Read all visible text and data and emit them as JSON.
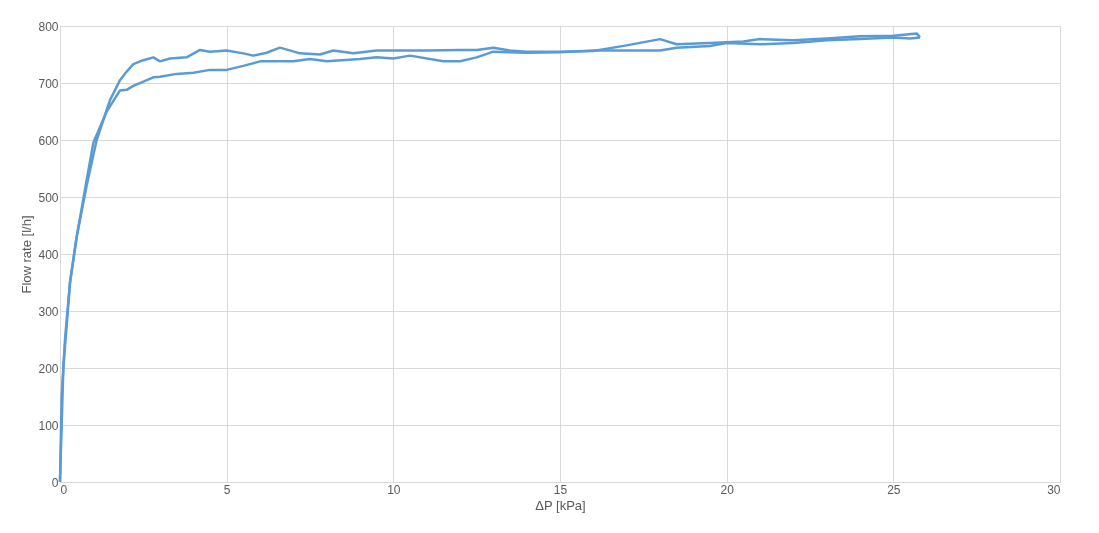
{
  "chart_data": {
    "type": "line",
    "xlabel": "ΔP [kPa]",
    "ylabel": "Flow rate [l/h]",
    "xlim": [
      0,
      30
    ],
    "xticks": [
      0,
      5,
      10,
      15,
      20,
      25,
      30
    ],
    "ylim": [
      0,
      800
    ],
    "yticks": [
      0,
      100,
      200,
      300,
      400,
      500,
      600,
      700,
      800
    ],
    "grid": true,
    "legend": false,
    "marker": "none",
    "line_style": "solid",
    "series": [
      {
        "color": "#5b9bd5",
        "x": [
          0,
          0.05,
          0.15,
          0.3,
          0.5,
          0.8,
          1.1,
          1.5,
          1.8,
          2.0,
          2.2,
          2.5,
          2.8,
          3.0,
          3.3,
          3.8,
          4.2,
          4.5,
          5,
          5.5,
          5.8,
          6.2,
          6.6,
          7.2,
          7.8,
          8.2,
          8.8,
          9.5,
          10,
          11,
          12,
          12.5,
          13,
          13.5,
          14,
          15,
          16,
          17,
          18,
          18.5,
          19.5,
          20.5,
          21,
          22,
          23,
          24,
          25,
          25.7,
          25.8
        ],
        "values": [
          0,
          150,
          250,
          350,
          430,
          520,
          600,
          670,
          705,
          720,
          733,
          740,
          745,
          738,
          743,
          745,
          758,
          755,
          757,
          752,
          748,
          753,
          762,
          752,
          750,
          757,
          752,
          757,
          757,
          757,
          758,
          758,
          762,
          757,
          755,
          755,
          756,
          766,
          777,
          768,
          770,
          773,
          777,
          775,
          778,
          782,
          783,
          787,
          780
        ]
      },
      {
        "color": "#5b9bd5",
        "x": [
          25.8,
          25.5,
          25,
          24,
          23,
          22,
          21,
          20,
          19.5,
          18.5,
          18,
          17,
          16,
          15,
          14,
          13,
          12.5,
          12,
          11.5,
          10.5,
          10,
          9.5,
          9,
          8,
          7.5,
          7,
          6,
          5.5,
          5,
          4.5,
          4,
          3.5,
          3,
          2.8,
          2.2,
          2.0,
          1.8,
          1.4,
          1.0,
          0.8,
          0.5,
          0.3,
          0.1,
          0
        ],
        "values": [
          780,
          778,
          780,
          777,
          775,
          770,
          768,
          770,
          765,
          762,
          757,
          757,
          757,
          754,
          753,
          755,
          745,
          738,
          738,
          748,
          743,
          745,
          742,
          738,
          742,
          738,
          738,
          730,
          723,
          723,
          718,
          716,
          711,
          710,
          695,
          688,
          687,
          650,
          595,
          530,
          430,
          350,
          200,
          0
        ]
      }
    ]
  }
}
